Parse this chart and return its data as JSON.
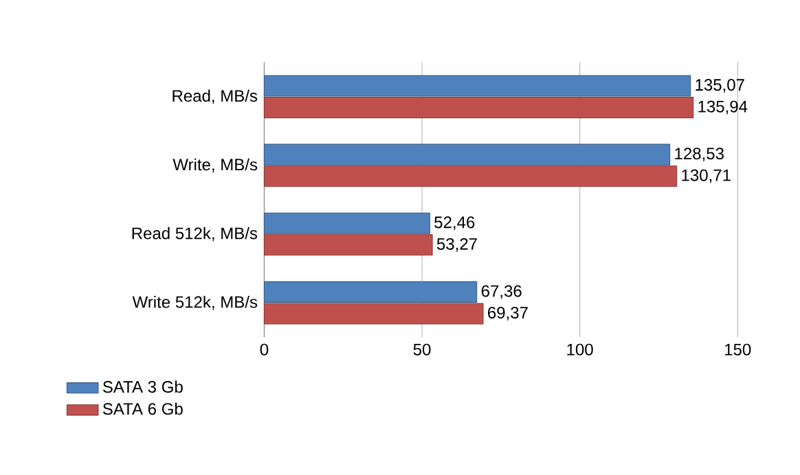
{
  "chart_data": {
    "type": "bar",
    "orientation": "horizontal",
    "categories": [
      "Read, MB/s",
      "Write, MB/s",
      "Read 512k, MB/s",
      "Write 512k, MB/s"
    ],
    "series": [
      {
        "name": "SATA 3 Gb",
        "color": "#4f81bd",
        "values": [
          135.07,
          128.53,
          52.46,
          67.36
        ],
        "value_labels": [
          "135,07",
          "128,53",
          "52,46",
          "67,36"
        ]
      },
      {
        "name": "SATA 6 Gb",
        "color": "#c0504d",
        "values": [
          135.94,
          130.71,
          53.27,
          69.37
        ],
        "value_labels": [
          "135,94",
          "130,71",
          "53,27",
          "69,37"
        ]
      }
    ],
    "xlim": [
      0,
      150
    ],
    "xticks": [
      0,
      50,
      100,
      150
    ],
    "grid": "x",
    "legend": "bottom"
  }
}
